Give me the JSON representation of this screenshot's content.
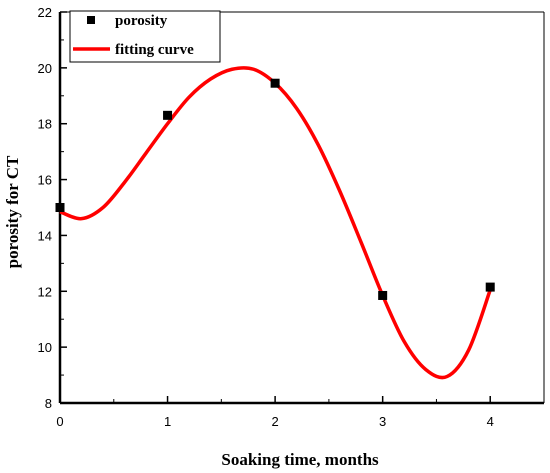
{
  "chart_data": {
    "type": "scatter",
    "xlabel": "Soaking time,   months",
    "ylabel": "porosity for CT",
    "xlim": [
      0,
      4.5
    ],
    "ylim": [
      8,
      22
    ],
    "x_ticks": [
      0,
      1,
      2,
      3,
      4
    ],
    "y_ticks": [
      8,
      10,
      12,
      14,
      16,
      18,
      20,
      22
    ],
    "grid": false,
    "legend_position": "top-left",
    "series": [
      {
        "name": "porosity",
        "kind": "scatter",
        "marker": "square",
        "color": "#000000",
        "x": [
          0,
          1,
          2,
          3,
          4
        ],
        "y": [
          15.0,
          18.3,
          19.45,
          11.85,
          12.15
        ]
      },
      {
        "name": "fitting curve",
        "kind": "line",
        "color": "#ff0000",
        "x": [
          0,
          0.2,
          0.4,
          0.6,
          0.8,
          1.0,
          1.2,
          1.4,
          1.6,
          1.8,
          2.0,
          2.2,
          2.4,
          2.6,
          2.8,
          3.0,
          3.2,
          3.4,
          3.6,
          3.8,
          4.0
        ],
        "y": [
          14.85,
          14.6,
          15.0,
          15.9,
          16.95,
          18.0,
          18.95,
          19.6,
          19.95,
          19.95,
          19.45,
          18.55,
          17.25,
          15.6,
          13.75,
          11.85,
          10.2,
          9.2,
          8.95,
          9.9,
          12.05
        ]
      }
    ]
  }
}
